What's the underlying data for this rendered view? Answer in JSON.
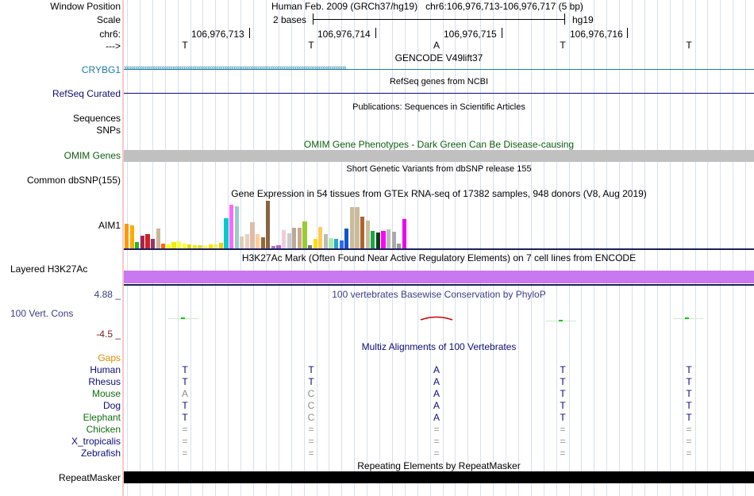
{
  "header": {
    "window_position_label": "Window Position",
    "window_position_value": "Human Feb. 2009 (GRCh37/hg19)   chr6:106,976,713-106,976,717 (5 bp)",
    "scale_label": "Scale",
    "scale_value": "2 bases",
    "scale_assembly": "hg19",
    "chrom_label": "chr6:",
    "strand_label": "--->",
    "positions": [
      "106,976,713",
      "106,976,714",
      "106,976,715",
      "106,976,716"
    ],
    "bases": [
      "T",
      "T",
      "A",
      "T",
      "T"
    ]
  },
  "tracks": {
    "gencode": {
      "title": "GENCODE V49lift37",
      "gene_label": "CRYBG1",
      "color": "#1a7ca7"
    },
    "refseq": {
      "title": "RefSeq genes from NCBI",
      "label": "RefSeq Curated",
      "color": "#0c0c78"
    },
    "publications": {
      "title": "Publications: Sequences in Scientific Articles",
      "label1": "Sequences",
      "label2": "SNPs"
    },
    "omim": {
      "title": "OMIM Gene Phenotypes - Dark Green Can Be Disease-causing",
      "label": "OMIM Genes",
      "color": "#0f5e0f",
      "bar_color": "#c0c0c0"
    },
    "dbsnp": {
      "title": "Short Genetic Variants from dbSNP release 155",
      "label": "Common dbSNP(155)"
    },
    "gtex": {
      "title": "Gene Expression in 54 tissues from GTEx RNA-seq of 17382 samples, 948 donors (V8, Aug 2019)",
      "gene_label": "AIM1",
      "relative_expression": [
        0.52,
        0.48,
        0.13,
        0.26,
        0.3,
        0.2,
        0.41,
        0.1,
        0.09,
        0.14,
        0.15,
        0.1,
        0.08,
        0.06,
        0.06,
        0.06,
        0.08,
        0.08,
        0.12,
        0.64,
        0.92,
        0.88,
        0.25,
        0.3,
        0.55,
        0.3,
        0.23,
        1.0,
        0.05,
        0.07,
        0.38,
        0.32,
        0.43,
        0.44,
        0.57,
        0.07,
        0.2,
        0.45,
        0.3,
        0.22,
        0.2,
        0.16,
        0.41,
        0.87,
        0.87,
        0.66,
        0.59,
        0.37,
        0.33,
        0.37,
        0.4,
        0.35,
        0.1,
        0.62
      ],
      "colors": [
        "#ff9900",
        "#ffaa00",
        "#22bb22",
        "#aa2255",
        "#cc2222",
        "#993366",
        "#ccb399",
        "#ff6600",
        "#ffff00",
        "#eeee00",
        "#ffff33",
        "#ffff33",
        "#dddd00",
        "#eeee00",
        "#dddd55",
        "#ffff66",
        "#ffdd00",
        "#eeee66",
        "#ffcc00",
        "#00cccc",
        "#ff66ff",
        "#99cccc",
        "#ddccbb",
        "#eeccbb",
        "#ddbbaa",
        "#ffcc99",
        "#996633",
        "#886644",
        "#aa77bb",
        "#aa66cc",
        "#eeccdd",
        "#cccccc",
        "#bbaa99",
        "#ccaa88",
        "#99cc33",
        "#777777",
        "#ffdd00",
        "#ffcc55",
        "#bbbbbb",
        "#aaeeaa",
        "#22aacc",
        "#3366ff",
        "#1155cc",
        "#ccbb99",
        "#ccbb99",
        "#aa6633",
        "#ccbb99",
        "#11aa44",
        "#004400",
        "#ff00ff",
        "#bbbbbb",
        "#aaaaaa",
        "#999999",
        "#ee00ee"
      ]
    },
    "h3k27ac": {
      "title": "H3K27Ac Mark (Often Found Near Active Regulatory Elements) on 7 cell lines from ENCODE",
      "label": "Layered H3K27Ac",
      "color": "#c878f0"
    },
    "phylop": {
      "title": "100 vertebrates Basewise Conservation by PhyloP",
      "label": "100 Vert. Cons",
      "max_label": "4.88 _",
      "min_label": "-4.5 _",
      "color": "#3b3b8c"
    },
    "multiz": {
      "title": "Multiz Alignments of 100 Vertebrates",
      "gaps_label": "Gaps",
      "species": [
        {
          "name": "Human",
          "color": "#0c0c78",
          "bases": [
            "T",
            "T",
            "A",
            "T",
            "T"
          ]
        },
        {
          "name": "Rhesus",
          "color": "#0c0c78",
          "bases": [
            "T",
            "T",
            "A",
            "T",
            "T"
          ]
        },
        {
          "name": "Mouse",
          "color": "#0f6e0f",
          "bases": [
            "A",
            "C",
            "A",
            "T",
            "T"
          ]
        },
        {
          "name": "Dog",
          "color": "#0c0c78",
          "bases": [
            "T",
            "C",
            "A",
            "T",
            "T"
          ]
        },
        {
          "name": "Elephant",
          "color": "#0f6e0f",
          "bases": [
            "T",
            "C",
            "A",
            "T",
            "T"
          ]
        },
        {
          "name": "Chicken",
          "color": "#0f6e0f",
          "bases": [
            "=",
            "=",
            "=",
            "=",
            "="
          ]
        },
        {
          "name": "X_tropicalis",
          "color": "#0c0c78",
          "bases": [
            "=",
            "=",
            "=",
            "=",
            "="
          ]
        },
        {
          "name": "Zebrafish",
          "color": "#0c0c78",
          "bases": [
            "=",
            "=",
            "=",
            "=",
            "="
          ]
        }
      ]
    },
    "repeatmasker": {
      "title": "Repeating Elements by RepeatMasker",
      "label": "RepeatMasker"
    }
  }
}
